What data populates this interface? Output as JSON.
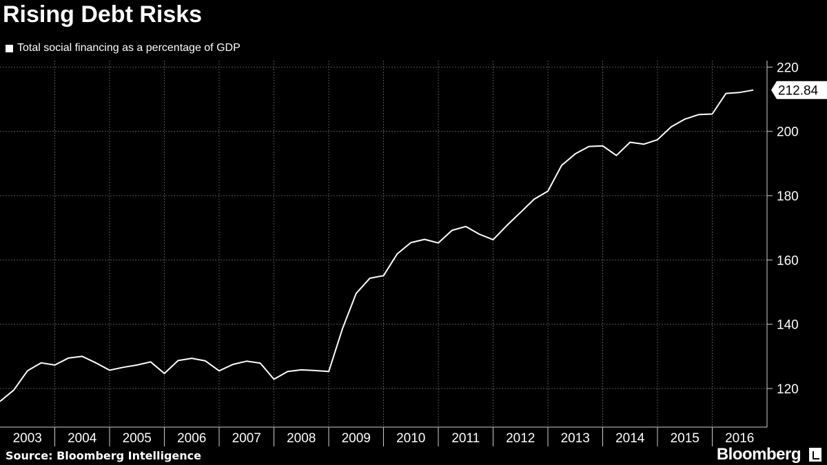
{
  "header": {
    "title": "Rising Debt Risks",
    "legend_label": "Total social financing as a percentage of GDP"
  },
  "footer": {
    "source": "Source: Bloomberg Intelligence",
    "brand": "Bloomberg",
    "brand_icon": "bloomberg-terminal-icon"
  },
  "colors": {
    "background": "#000000",
    "line": "#ffffff",
    "grid": "#555555"
  },
  "chart_data": {
    "type": "line",
    "title": "Rising Debt Risks",
    "xlabel": "",
    "ylabel": "",
    "y_axis_position": "right",
    "ylim": [
      108,
      222
    ],
    "yticks": [
      120,
      140,
      160,
      180,
      200,
      220
    ],
    "x_categories": [
      "2003",
      "2004",
      "2005",
      "2006",
      "2007",
      "2008",
      "2009",
      "2010",
      "2011",
      "2012",
      "2013",
      "2014",
      "2015",
      "2016"
    ],
    "xlim": [
      2002.75,
      2016.75
    ],
    "grid": true,
    "last_value_label": "212.84",
    "series": [
      {
        "name": "Total social financing as a percentage of GDP",
        "x": [
          2002.75,
          2003.0,
          2003.25,
          2003.5,
          2003.75,
          2004.0,
          2004.25,
          2004.5,
          2004.75,
          2005.0,
          2005.25,
          2005.5,
          2005.75,
          2006.0,
          2006.25,
          2006.5,
          2006.75,
          2007.0,
          2007.25,
          2007.5,
          2007.75,
          2008.0,
          2008.25,
          2008.5,
          2008.75,
          2009.0,
          2009.25,
          2009.5,
          2009.75,
          2010.0,
          2010.25,
          2010.5,
          2010.75,
          2011.0,
          2011.25,
          2011.5,
          2011.75,
          2012.0,
          2012.25,
          2012.5,
          2012.75,
          2013.0,
          2013.25,
          2013.5,
          2013.75,
          2014.0,
          2014.25,
          2014.5,
          2014.75,
          2015.0,
          2015.25,
          2015.5,
          2015.75,
          2016.0,
          2016.25,
          2016.5
        ],
        "y": [
          116,
          119.5,
          125.5,
          128,
          127.3,
          129.5,
          130,
          128,
          125.7,
          126.6,
          127.3,
          128.3,
          124.7,
          128.7,
          129.4,
          128.6,
          125.5,
          127.5,
          128.5,
          127.9,
          122.9,
          125.3,
          125.8,
          125.6,
          125.3,
          138.6,
          149.6,
          154.3,
          155.1,
          161.9,
          165.4,
          166.4,
          165.3,
          169.2,
          170.4,
          168,
          166.3,
          170.7,
          174.8,
          178.9,
          181.4,
          189.4,
          193,
          195.3,
          195.5,
          192.5,
          196.6,
          196,
          197.4,
          201.4,
          203.8,
          205.2,
          205.4,
          211.8,
          212.1,
          212.84
        ]
      }
    ]
  }
}
